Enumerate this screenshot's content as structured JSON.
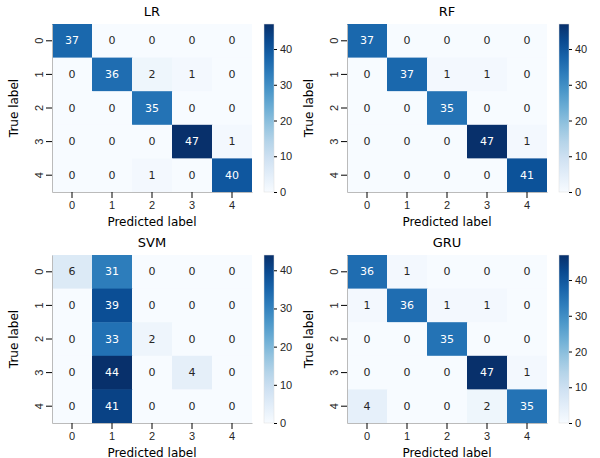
{
  "chart_data": [
    {
      "type": "heatmap",
      "title": "LR",
      "xlabel": "Predicted label",
      "ylabel": "True label",
      "x": [
        "0",
        "1",
        "2",
        "3",
        "4"
      ],
      "y": [
        "0",
        "1",
        "2",
        "3",
        "4"
      ],
      "cells": [
        [
          37,
          0,
          0,
          0,
          0
        ],
        [
          0,
          36,
          2,
          1,
          0
        ],
        [
          0,
          0,
          35,
          0,
          0
        ],
        [
          0,
          0,
          0,
          47,
          1
        ],
        [
          0,
          0,
          1,
          0,
          40
        ]
      ],
      "data_labels": true,
      "colorbar_range": [
        0,
        47
      ],
      "colorbar_ticks": [
        0,
        10,
        20,
        30,
        40
      ]
    },
    {
      "type": "heatmap",
      "title": "RF",
      "xlabel": "Predicted label",
      "ylabel": "True label",
      "x": [
        "0",
        "1",
        "2",
        "3",
        "4"
      ],
      "y": [
        "0",
        "1",
        "2",
        "3",
        "4"
      ],
      "cells": [
        [
          37,
          0,
          0,
          0,
          0
        ],
        [
          0,
          37,
          1,
          1,
          0
        ],
        [
          0,
          0,
          35,
          0,
          0
        ],
        [
          0,
          0,
          0,
          47,
          1
        ],
        [
          0,
          0,
          0,
          0,
          41
        ]
      ],
      "data_labels": true,
      "colorbar_range": [
        0,
        47
      ],
      "colorbar_ticks": [
        0,
        10,
        20,
        30,
        40
      ]
    },
    {
      "type": "heatmap",
      "title": "SVM",
      "xlabel": "Predicted label",
      "ylabel": "True label",
      "x": [
        "0",
        "1",
        "2",
        "3",
        "4"
      ],
      "y": [
        "0",
        "1",
        "2",
        "3",
        "4"
      ],
      "cells": [
        [
          6,
          31,
          0,
          0,
          0
        ],
        [
          0,
          39,
          0,
          0,
          0
        ],
        [
          0,
          33,
          2,
          0,
          0
        ],
        [
          0,
          44,
          0,
          4,
          0
        ],
        [
          0,
          41,
          0,
          0,
          0
        ]
      ],
      "data_labels": true,
      "colorbar_range": [
        0,
        44
      ],
      "colorbar_ticks": [
        0,
        10,
        20,
        30,
        40
      ]
    },
    {
      "type": "heatmap",
      "title": "GRU",
      "xlabel": "Predicted label",
      "ylabel": "True label",
      "x": [
        "0",
        "1",
        "2",
        "3",
        "4"
      ],
      "y": [
        "0",
        "1",
        "2",
        "3",
        "4"
      ],
      "cells": [
        [
          36,
          1,
          0,
          0,
          0
        ],
        [
          1,
          36,
          1,
          1,
          0
        ],
        [
          0,
          0,
          35,
          0,
          0
        ],
        [
          0,
          0,
          0,
          47,
          1
        ],
        [
          4,
          0,
          0,
          2,
          35
        ]
      ],
      "data_labels": true,
      "colorbar_range": [
        0,
        47
      ],
      "colorbar_ticks": [
        0,
        10,
        20,
        30,
        40
      ]
    }
  ]
}
